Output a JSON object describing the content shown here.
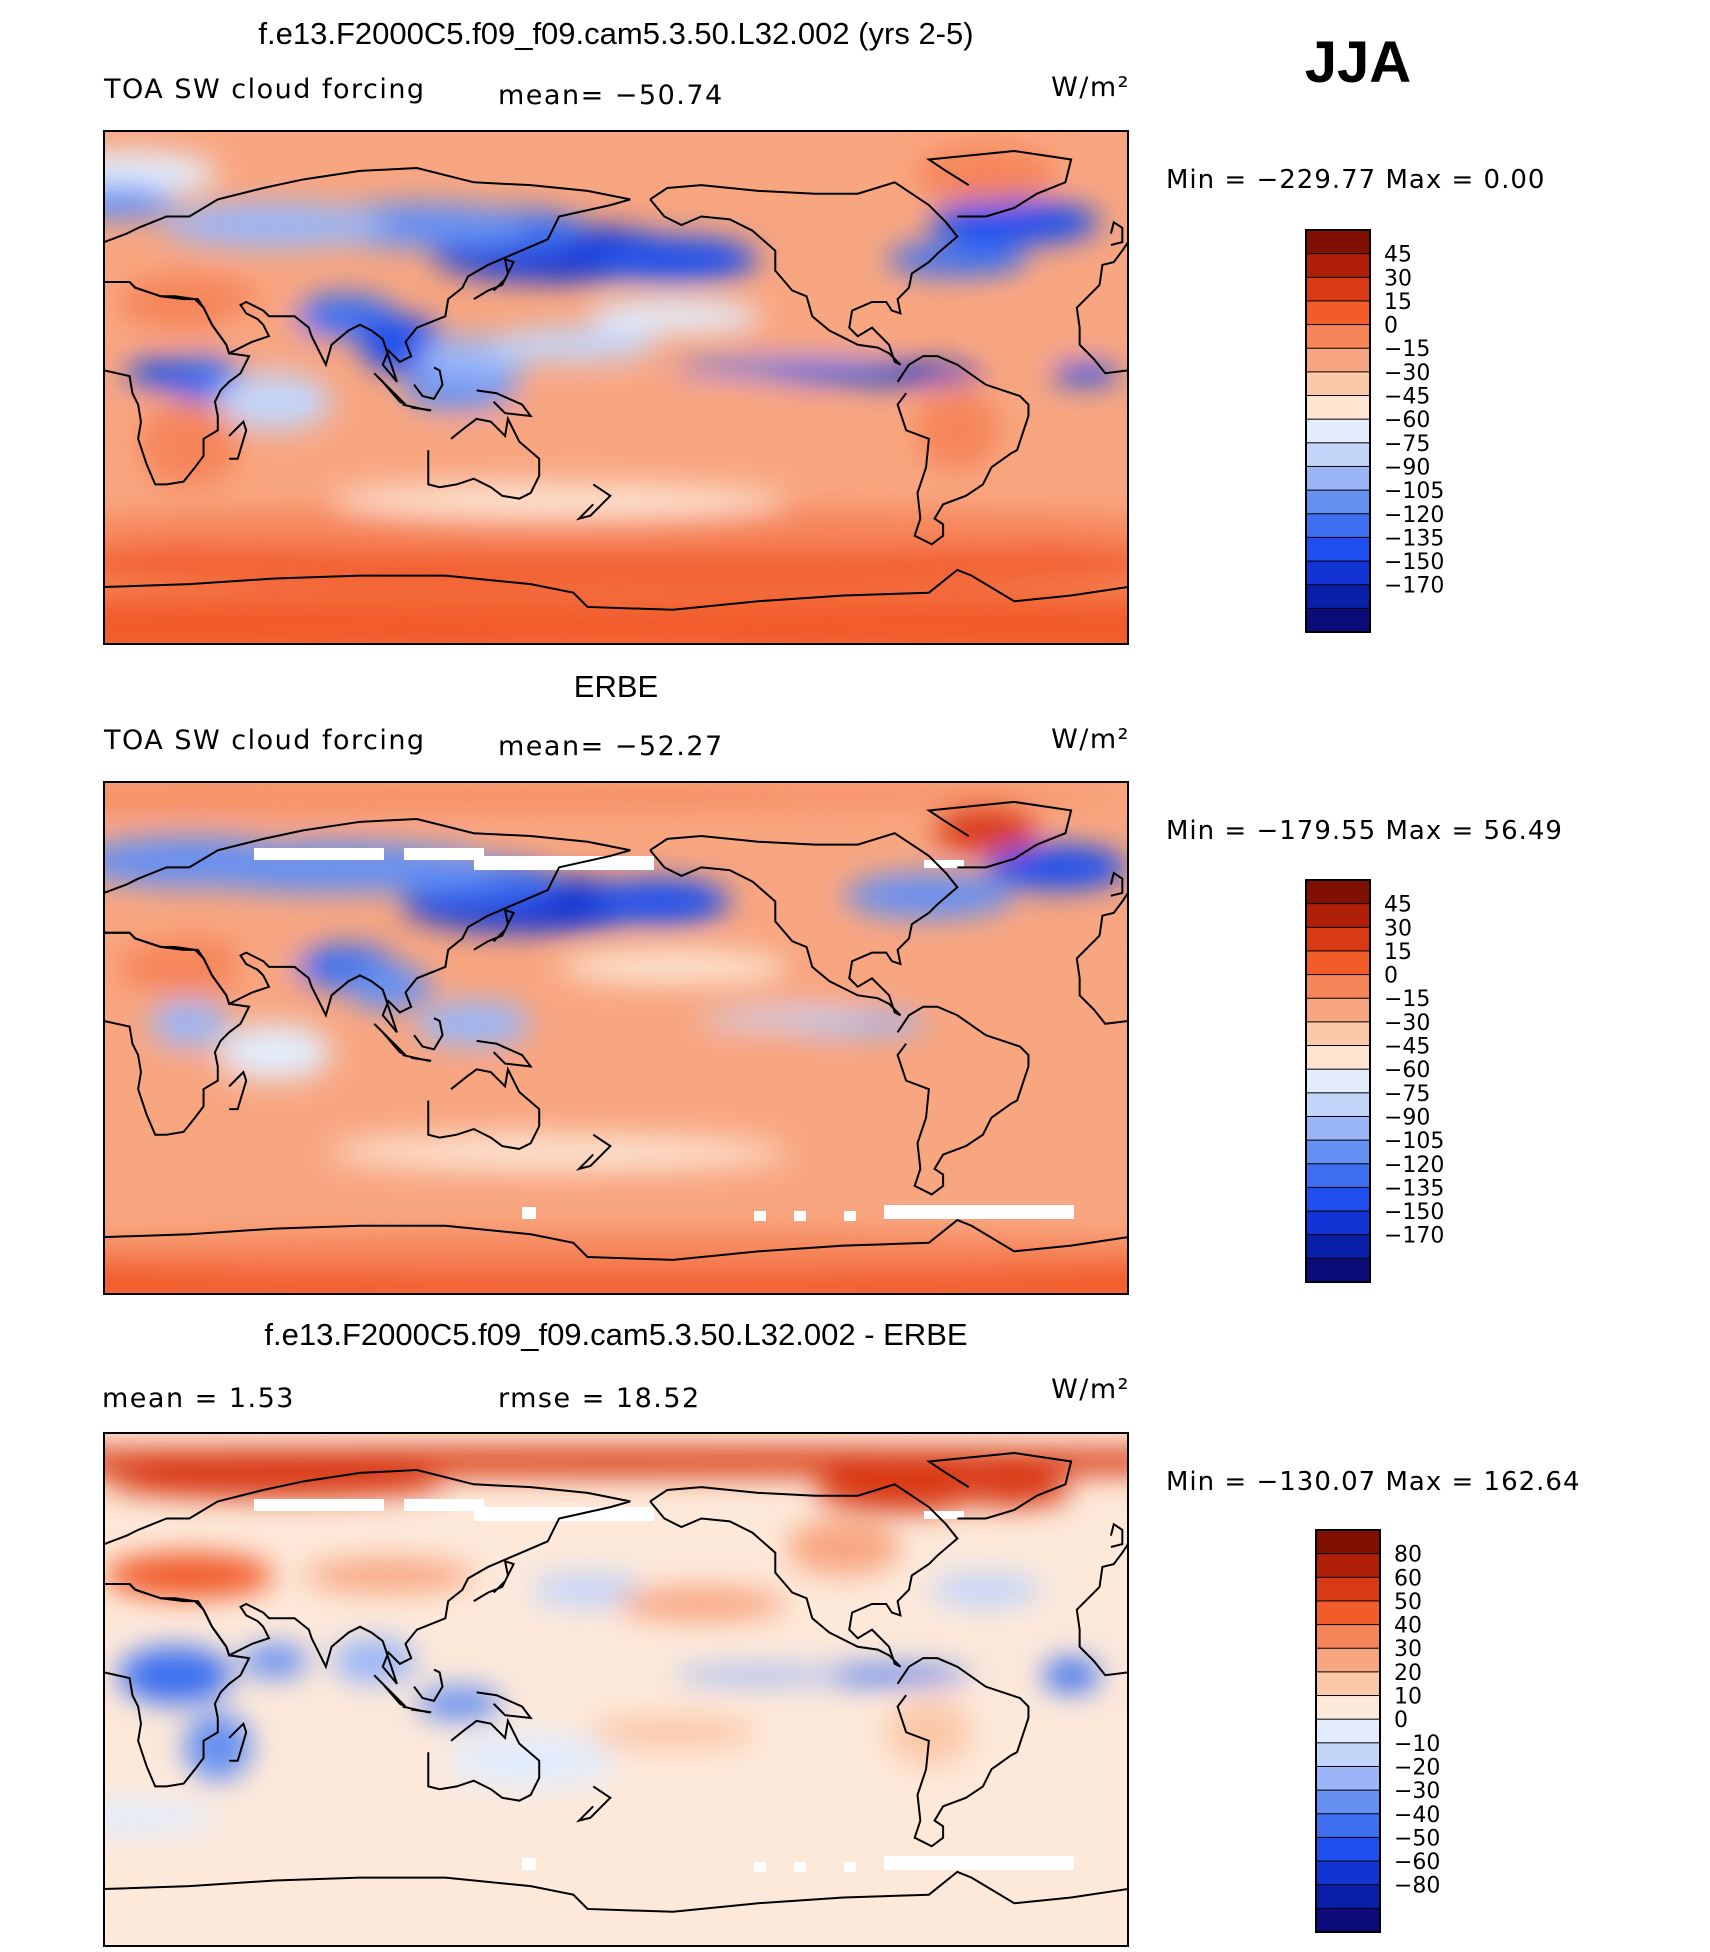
{
  "season": "JJA",
  "colors": {
    "abs_scale": [
      "#0b0b7a",
      "#0a1fa8",
      "#1234d4",
      "#1f4fef",
      "#3d6ff0",
      "#6690f2",
      "#9ab6f7",
      "#c3d6fa",
      "#e2ecfc",
      "#fde5d2",
      "#fbc8a8",
      "#f8a680",
      "#f6855a",
      "#f25c2b",
      "#d93a16",
      "#b02008",
      "#801000"
    ],
    "diff_scale": [
      "#0b0b7a",
      "#0a1fa8",
      "#1234d4",
      "#1f4fef",
      "#3d6ff0",
      "#6690f2",
      "#9ab6f7",
      "#c3d6fa",
      "#e2ecfc",
      "#fde9da",
      "#fbc8a8",
      "#f8a680",
      "#f6855a",
      "#f25c2b",
      "#d93a16",
      "#b02008",
      "#801000"
    ]
  },
  "panels": [
    {
      "title": "f.e13.F2000C5.f09_f09.cam5.3.50.L32.002 (yrs 2-5)",
      "left_label": "TOA SW cloud forcing",
      "mid_label": "mean=  −50.74",
      "units": "W/m²",
      "min_max": "Min  =  −229.77  Max  =     0.00"
    },
    {
      "title": "ERBE",
      "left_label": "TOA SW cloud forcing",
      "mid_label": "mean=  −52.27",
      "units": "W/m²",
      "min_max": "Min  =  −179.55  Max  =    56.49"
    },
    {
      "title": "f.e13.F2000C5.f09_f09.cam5.3.50.L32.002 - ERBE",
      "left_label": "mean  =      1.53",
      "mid_label": "rmse  =    18.52",
      "units": "W/m²",
      "min_max": "Min  =  −130.07  Max  =  162.64"
    }
  ],
  "colorbars": [
    {
      "ticks": [
        "45",
        "30",
        "15",
        "0",
        "−15",
        "−30",
        "−45",
        "−60",
        "−75",
        "−90",
        "−105",
        "−120",
        "−135",
        "−150",
        "−170"
      ]
    },
    {
      "ticks": [
        "45",
        "30",
        "15",
        "0",
        "−15",
        "−30",
        "−45",
        "−60",
        "−75",
        "−90",
        "−105",
        "−120",
        "−135",
        "−150",
        "−170"
      ]
    },
    {
      "ticks": [
        "80",
        "60",
        "50",
        "40",
        "30",
        "20",
        "10",
        "0",
        "−10",
        "−20",
        "−30",
        "−40",
        "−50",
        "−60",
        "−80"
      ]
    }
  ],
  "chart_data": [
    {
      "type": "heatmap",
      "title": "f.e13.F2000C5.f09_f09.cam5.3.50.L32.002 (yrs 2-5)",
      "variable": "TOA SW cloud forcing",
      "units": "W/m²",
      "mean": -50.74,
      "min": -229.77,
      "max": 0.0,
      "levels": [
        45,
        30,
        15,
        0,
        -15,
        -30,
        -45,
        -60,
        -75,
        -90,
        -105,
        -120,
        -135,
        -150,
        -170
      ]
    },
    {
      "type": "heatmap",
      "title": "ERBE",
      "variable": "TOA SW cloud forcing",
      "units": "W/m²",
      "mean": -52.27,
      "min": -179.55,
      "max": 56.49,
      "levels": [
        45,
        30,
        15,
        0,
        -15,
        -30,
        -45,
        -60,
        -75,
        -90,
        -105,
        -120,
        -135,
        -150,
        -170
      ]
    },
    {
      "type": "heatmap",
      "title": "f.e13.F2000C5.f09_f09.cam5.3.50.L32.002 - ERBE",
      "units": "W/m²",
      "mean": 1.53,
      "rmse": 18.52,
      "min": -130.07,
      "max": 162.64,
      "levels": [
        80,
        60,
        50,
        40,
        30,
        20,
        10,
        0,
        -10,
        -20,
        -30,
        -40,
        -50,
        -60,
        -80
      ]
    }
  ]
}
